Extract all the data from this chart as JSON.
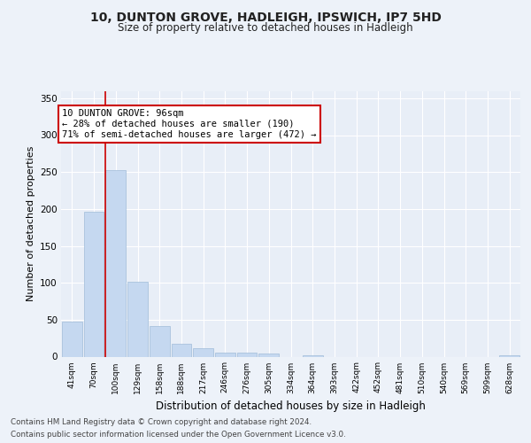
{
  "title1": "10, DUNTON GROVE, HADLEIGH, IPSWICH, IP7 5HD",
  "title2": "Size of property relative to detached houses in Hadleigh",
  "xlabel": "Distribution of detached houses by size in Hadleigh",
  "ylabel": "Number of detached properties",
  "categories": [
    "41sqm",
    "70sqm",
    "100sqm",
    "129sqm",
    "158sqm",
    "188sqm",
    "217sqm",
    "246sqm",
    "276sqm",
    "305sqm",
    "334sqm",
    "364sqm",
    "393sqm",
    "422sqm",
    "452sqm",
    "481sqm",
    "510sqm",
    "540sqm",
    "569sqm",
    "599sqm",
    "628sqm"
  ],
  "values": [
    48,
    196,
    253,
    101,
    41,
    18,
    12,
    5,
    5,
    4,
    0,
    2,
    0,
    0,
    0,
    0,
    0,
    0,
    0,
    0,
    2
  ],
  "bar_color": "#c5d8f0",
  "bar_edge_color": "#a0bcd8",
  "property_line_color": "#cc0000",
  "annotation_text": "10 DUNTON GROVE: 96sqm\n← 28% of detached houses are smaller (190)\n71% of semi-detached houses are larger (472) →",
  "annotation_box_color": "#ffffff",
  "annotation_box_edge_color": "#cc0000",
  "footnote1": "Contains HM Land Registry data © Crown copyright and database right 2024.",
  "footnote2": "Contains public sector information licensed under the Open Government Licence v3.0.",
  "bg_color": "#edf2f9",
  "plot_bg_color": "#e8eef7",
  "grid_color": "#ffffff",
  "ylim": [
    0,
    360
  ],
  "yticks": [
    0,
    50,
    100,
    150,
    200,
    250,
    300,
    350
  ]
}
